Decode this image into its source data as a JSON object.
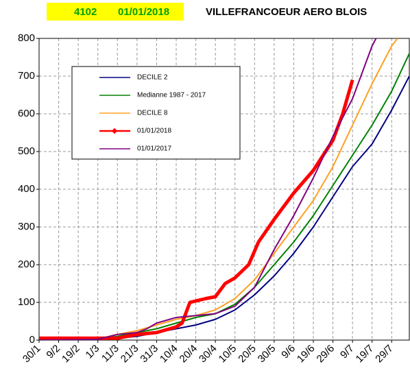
{
  "header": {
    "code": "4102",
    "date": "01/01/2018",
    "station": "VILLEFRANCOEUR AERO BLOIS"
  },
  "chart_data": {
    "type": "line",
    "xlim": [
      0,
      189
    ],
    "ylim": [
      0,
      800
    ],
    "xticks": [
      {
        "value": 0,
        "label": "30/1"
      },
      {
        "value": 10,
        "label": "9/2"
      },
      {
        "value": 20,
        "label": "19/2"
      },
      {
        "value": 30,
        "label": "1/3"
      },
      {
        "value": 40,
        "label": "11/3"
      },
      {
        "value": 50,
        "label": "21/3"
      },
      {
        "value": 60,
        "label": "31/3"
      },
      {
        "value": 70,
        "label": "10/4"
      },
      {
        "value": 80,
        "label": "20/4"
      },
      {
        "value": 90,
        "label": "30/4"
      },
      {
        "value": 100,
        "label": "10/5"
      },
      {
        "value": 110,
        "label": "20/5"
      },
      {
        "value": 120,
        "label": "30/5"
      },
      {
        "value": 130,
        "label": "9/6"
      },
      {
        "value": 140,
        "label": "19/6"
      },
      {
        "value": 150,
        "label": "29/6"
      },
      {
        "value": 160,
        "label": "9/7"
      },
      {
        "value": 170,
        "label": "19/7"
      },
      {
        "value": 180,
        "label": "29/7"
      }
    ],
    "yticks": [
      0,
      100,
      200,
      300,
      400,
      500,
      600,
      700,
      800
    ],
    "grid": true,
    "series": [
      {
        "name": "DECILE 2",
        "color": "#000080",
        "x": [
          0,
          30,
          40,
          50,
          60,
          70,
          80,
          90,
          100,
          110,
          120,
          130,
          140,
          150,
          160,
          170,
          180,
          189
        ],
        "values": [
          0,
          0,
          5,
          10,
          20,
          30,
          40,
          55,
          80,
          120,
          170,
          230,
          300,
          380,
          460,
          520,
          610,
          700
        ]
      },
      {
        "name": "Medianne 1987 - 2017",
        "color": "#008000",
        "x": [
          0,
          30,
          40,
          50,
          60,
          70,
          80,
          90,
          100,
          110,
          120,
          130,
          140,
          150,
          160,
          170,
          180,
          189
        ],
        "values": [
          0,
          2,
          10,
          20,
          30,
          45,
          60,
          70,
          95,
          140,
          200,
          260,
          330,
          410,
          490,
          570,
          660,
          760
        ]
      },
      {
        "name": "DECILE 8",
        "color": "#ffa020",
        "x": [
          0,
          30,
          40,
          50,
          60,
          70,
          80,
          90,
          100,
          110,
          120,
          130,
          140,
          150,
          160,
          170,
          180,
          183
        ],
        "values": [
          0,
          3,
          15,
          25,
          40,
          55,
          65,
          80,
          110,
          160,
          230,
          300,
          370,
          460,
          570,
          680,
          780,
          800
        ]
      },
      {
        "name": "01/01/2018",
        "color": "#ff0000",
        "x": [
          0,
          40,
          45,
          50,
          60,
          70,
          73,
          77,
          85,
          90,
          95,
          100,
          107,
          112,
          120,
          130,
          140,
          150,
          155,
          160
        ],
        "values": [
          5,
          5,
          10,
          15,
          20,
          35,
          45,
          100,
          110,
          115,
          150,
          165,
          200,
          260,
          320,
          390,
          450,
          530,
          600,
          690
        ]
      },
      {
        "name": "01/01/2017",
        "color": "#800080",
        "x": [
          0,
          30,
          40,
          50,
          55,
          60,
          70,
          80,
          90,
          100,
          110,
          120,
          130,
          140,
          150,
          160,
          170,
          172
        ],
        "values": [
          0,
          2,
          15,
          20,
          30,
          45,
          60,
          65,
          70,
          90,
          140,
          240,
          330,
          430,
          540,
          640,
          780,
          800
        ]
      }
    ]
  }
}
